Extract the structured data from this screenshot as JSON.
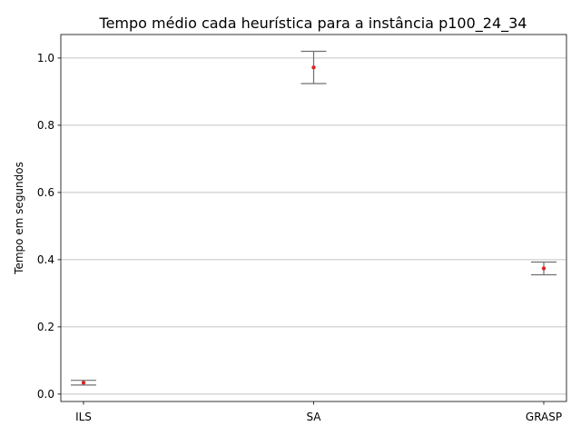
{
  "chart_data": {
    "type": "scatter",
    "title": "Tempo médio cada heurística para a instância p100_24_34",
    "xlabel": "",
    "ylabel": "Tempo em segundos",
    "categories": [
      "ILS",
      "SA",
      "GRASP"
    ],
    "series": [
      {
        "values": [
          0.034,
          0.972,
          0.374
        ],
        "err_low": [
          0.027,
          0.924,
          0.355
        ],
        "err_high": [
          0.041,
          1.02,
          0.393
        ]
      }
    ],
    "ylim": [
      -0.022,
      1.07
    ],
    "yticks": [
      0.0,
      0.2,
      0.4,
      0.6,
      0.8,
      1.0
    ],
    "ytick_labels": [
      "0.0",
      "0.2",
      "0.4",
      "0.6",
      "0.8",
      "1.0"
    ],
    "grid": "horizontal",
    "colors": {
      "point": "#d62728",
      "errorbar": "#707070",
      "grid": "#b0b0b0",
      "axes": "#000000"
    }
  }
}
